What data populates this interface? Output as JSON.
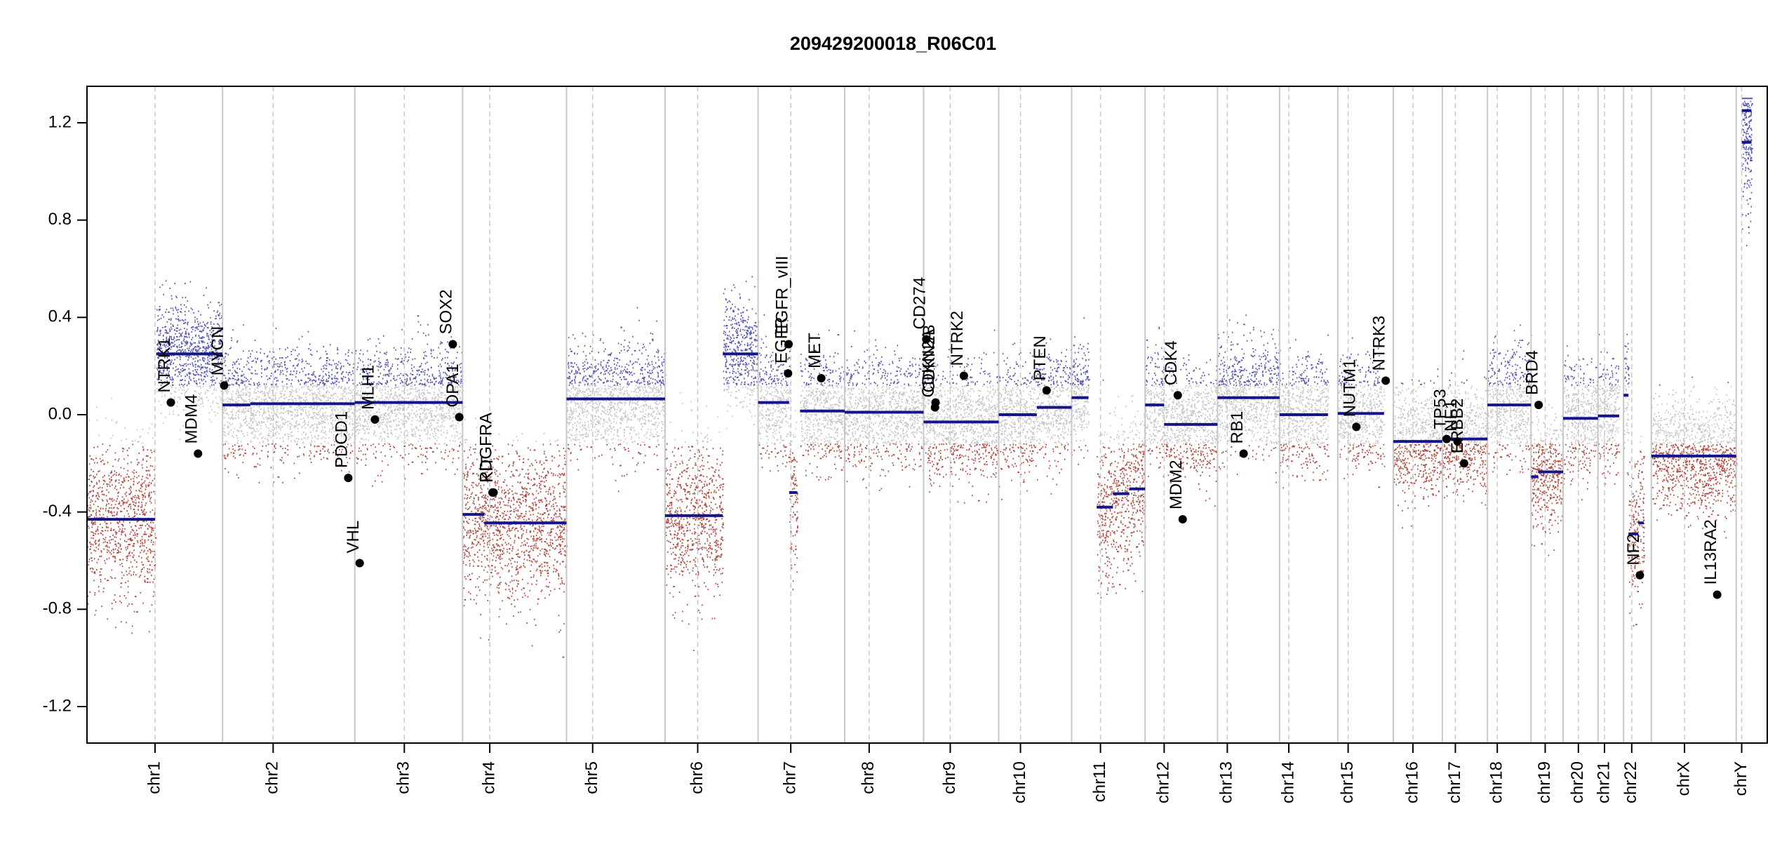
{
  "chart_data": {
    "type": "scatter",
    "title": "209429200018_R06C01",
    "xlabel": "",
    "ylabel": "",
    "ylim": [
      -1.35,
      1.35
    ],
    "yticks": [
      -1.2,
      -0.8,
      -0.4,
      0.0,
      0.4,
      0.8,
      1.2
    ],
    "ytick_labels": [
      "-1.2",
      "-0.8",
      "-0.4",
      "0.0",
      "0.4",
      "0.8",
      "1.2"
    ],
    "grid": false,
    "colors": {
      "gain": "#3b3ba8",
      "loss": "#a52a1f",
      "neutral": "#bdbdbd",
      "segment": "#14148c",
      "gene_point": "#000000",
      "boundary": "#c8c8c8"
    },
    "chromosomes": [
      {
        "name": "chr1",
        "start": 0,
        "end": 249,
        "centro": 125
      },
      {
        "name": "chr2",
        "start": 249,
        "end": 492,
        "centro": 93
      },
      {
        "name": "chr3",
        "start": 492,
        "end": 690,
        "centro": 91
      },
      {
        "name": "chr4",
        "start": 690,
        "end": 881,
        "centro": 50
      },
      {
        "name": "chr5",
        "start": 881,
        "end": 1062,
        "centro": 48
      },
      {
        "name": "chr6",
        "start": 1062,
        "end": 1233,
        "centro": 60
      },
      {
        "name": "chr7",
        "start": 1233,
        "end": 1392,
        "centro": 60
      },
      {
        "name": "chr8",
        "start": 1392,
        "end": 1537,
        "centro": 45
      },
      {
        "name": "chr9",
        "start": 1537,
        "end": 1675,
        "centro": 49
      },
      {
        "name": "chr10",
        "start": 1675,
        "end": 1809,
        "centro": 40
      },
      {
        "name": "chr11",
        "start": 1809,
        "end": 1944,
        "centro": 53
      },
      {
        "name": "chr12",
        "start": 1944,
        "end": 2077,
        "centro": 35
      },
      {
        "name": "chr13",
        "start": 2077,
        "end": 2191,
        "centro": 18
      },
      {
        "name": "chr14",
        "start": 2191,
        "end": 2298,
        "centro": 17
      },
      {
        "name": "chr15",
        "start": 2298,
        "end": 2400,
        "centro": 19
      },
      {
        "name": "chr16",
        "start": 2400,
        "end": 2490,
        "centro": 36
      },
      {
        "name": "chr17",
        "start": 2490,
        "end": 2573,
        "centro": 24
      },
      {
        "name": "chr18",
        "start": 2573,
        "end": 2653,
        "centro": 18
      },
      {
        "name": "chr19",
        "start": 2653,
        "end": 2712,
        "centro": 26
      },
      {
        "name": "chr20",
        "start": 2712,
        "end": 2776,
        "centro": 28
      },
      {
        "name": "chr21",
        "start": 2776,
        "end": 2823,
        "centro": 12
      },
      {
        "name": "chr22",
        "start": 2823,
        "end": 2874,
        "centro": 15
      },
      {
        "name": "chrX",
        "start": 2874,
        "end": 3030,
        "centro": 61
      },
      {
        "name": "chrY",
        "start": 3030,
        "end": 3087,
        "centro": 10
      }
    ],
    "segments": [
      {
        "x0": 0,
        "x1": 125,
        "y": -0.43
      },
      {
        "x0": 127,
        "x1": 249,
        "y": 0.25
      },
      {
        "x0": 249,
        "x1": 300,
        "y": 0.04
      },
      {
        "x0": 300,
        "x1": 492,
        "y": 0.045
      },
      {
        "x0": 492,
        "x1": 690,
        "y": 0.05
      },
      {
        "x0": 690,
        "x1": 730,
        "y": -0.41
      },
      {
        "x0": 730,
        "x1": 881,
        "y": -0.445
      },
      {
        "x0": 881,
        "x1": 1062,
        "y": 0.065
      },
      {
        "x0": 1062,
        "x1": 1168,
        "y": -0.415
      },
      {
        "x0": 1168,
        "x1": 1233,
        "y": 0.25
      },
      {
        "x0": 1233,
        "x1": 1290,
        "y": 0.05
      },
      {
        "x0": 1290,
        "x1": 1305,
        "y": -0.32
      },
      {
        "x0": 1310,
        "x1": 1392,
        "y": 0.015
      },
      {
        "x0": 1392,
        "x1": 1537,
        "y": 0.01
      },
      {
        "x0": 1537,
        "x1": 1675,
        "y": -0.03
      },
      {
        "x0": 1675,
        "x1": 1745,
        "y": 0.0
      },
      {
        "x0": 1745,
        "x1": 1809,
        "y": 0.03
      },
      {
        "x0": 1809,
        "x1": 1840,
        "y": 0.07
      },
      {
        "x0": 1855,
        "x1": 1885,
        "y": -0.38
      },
      {
        "x0": 1885,
        "x1": 1915,
        "y": -0.325
      },
      {
        "x0": 1915,
        "x1": 1944,
        "y": -0.305
      },
      {
        "x0": 1944,
        "x1": 1979,
        "y": 0.04
      },
      {
        "x0": 1979,
        "x1": 2077,
        "y": -0.04
      },
      {
        "x0": 2077,
        "x1": 2191,
        "y": 0.07
      },
      {
        "x0": 2191,
        "x1": 2280,
        "y": 0.0
      },
      {
        "x0": 2298,
        "x1": 2383,
        "y": 0.005
      },
      {
        "x0": 2400,
        "x1": 2490,
        "y": -0.11
      },
      {
        "x0": 2490,
        "x1": 2573,
        "y": -0.1
      },
      {
        "x0": 2573,
        "x1": 2653,
        "y": 0.04
      },
      {
        "x0": 2653,
        "x1": 2666,
        "y": -0.255
      },
      {
        "x0": 2666,
        "x1": 2712,
        "y": -0.235
      },
      {
        "x0": 2712,
        "x1": 2776,
        "y": -0.015
      },
      {
        "x0": 2776,
        "x1": 2815,
        "y": -0.005
      },
      {
        "x0": 2823,
        "x1": 2832,
        "y": 0.08
      },
      {
        "x0": 2832,
        "x1": 2850,
        "y": -0.49
      },
      {
        "x0": 2850,
        "x1": 2860,
        "y": -0.445
      },
      {
        "x0": 2874,
        "x1": 3030,
        "y": -0.17
      },
      {
        "x0": 3040,
        "x1": 3058,
        "y": 1.12
      },
      {
        "x0": 3040,
        "x1": 3058,
        "y": 1.25
      }
    ],
    "genes": [
      {
        "name": "NTRK1",
        "x": 154,
        "y": 0.05
      },
      {
        "name": "MDM4",
        "x": 204,
        "y": -0.16
      },
      {
        "name": "MYCN",
        "x": 252,
        "y": 0.12
      },
      {
        "name": "PDCD1",
        "x": 480,
        "y": -0.26
      },
      {
        "name": "VHL",
        "x": 501,
        "y": -0.61
      },
      {
        "name": "MLH1",
        "x": 529,
        "y": -0.02
      },
      {
        "name": "SOX2",
        "x": 672,
        "y": 0.29
      },
      {
        "name": "OPA1",
        "x": 684,
        "y": -0.01
      },
      {
        "name": "PDGFRA",
        "x": 745,
        "y": -0.32
      },
      {
        "name": "KIT",
        "x": 747,
        "y": -0.32
      },
      {
        "name": "EGFR",
        "x": 1288,
        "y": 0.17
      },
      {
        "name": "EGFR_vIII",
        "x": 1289,
        "y": 0.29
      },
      {
        "name": "MET",
        "x": 1349,
        "y": 0.15
      },
      {
        "name": "CD274",
        "x": 1542,
        "y": 0.31
      },
      {
        "name": "CDKN2A",
        "x": 1558,
        "y": 0.03
      },
      {
        "name": "CDKN2B",
        "x": 1559,
        "y": 0.05
      },
      {
        "name": "NTRK2",
        "x": 1611,
        "y": 0.16
      },
      {
        "name": "PTEN",
        "x": 1763,
        "y": 0.1
      },
      {
        "name": "CDK4",
        "x": 2004,
        "y": 0.08
      },
      {
        "name": "MDM2",
        "x": 2013,
        "y": -0.43
      },
      {
        "name": "RB1",
        "x": 2125,
        "y": -0.16
      },
      {
        "name": "NUTM1",
        "x": 2332,
        "y": -0.05
      },
      {
        "name": "NTRK3",
        "x": 2386,
        "y": 0.14
      },
      {
        "name": "TP53",
        "x": 2498,
        "y": -0.1
      },
      {
        "name": "NF1",
        "x": 2518,
        "y": -0.11
      },
      {
        "name": "ERBB2",
        "x": 2530,
        "y": -0.2
      },
      {
        "name": "BRD4",
        "x": 2667,
        "y": 0.04
      },
      {
        "name": "NF2",
        "x": 2853,
        "y": -0.66
      },
      {
        "name": "IL13RA2",
        "x": 2995,
        "y": -0.74
      }
    ]
  }
}
